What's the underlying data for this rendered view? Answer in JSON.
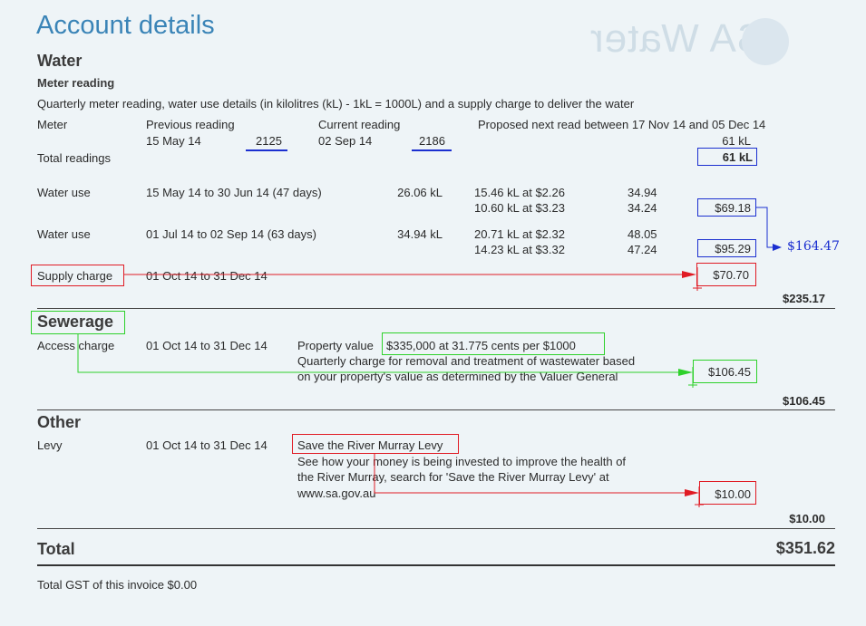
{
  "heading": "Account details",
  "water": {
    "title": "Water",
    "meter_reading_title": "Meter reading",
    "description": "Quarterly meter reading, water use details (in kilolitres (kL) - 1kL = 1000L) and a supply charge to deliver the water",
    "col_meter": "Meter",
    "col_previous": "Previous reading",
    "col_current": "Current reading",
    "col_proposed": "Proposed next read between 17 Nov 14 and 05 Dec 14",
    "previous_date": "15 May 14",
    "previous_value": "2125",
    "current_date": "02 Sep 14",
    "current_value": "2186",
    "meter_kl": "61 kL",
    "total_readings_label": "Total readings",
    "total_readings_value": "61 kL",
    "use1": {
      "label": "Water use",
      "period": "15 May 14 to 30 Jun 14 (47 days)",
      "kl": "26.06 kL",
      "tier1": "15.46 kL at $2.26",
      "tier1_amount": "34.94",
      "tier2": "10.60 kL at $3.23",
      "tier2_amount": "34.24",
      "subtotal": "$69.18"
    },
    "use2": {
      "label": "Water use",
      "period": "01 Jul 14 to 02 Sep 14 (63 days)",
      "kl": "34.94 kL",
      "tier1": "20.71 kL at $2.32",
      "tier1_amount": "48.05",
      "tier2": "14.23 kL at $3.32",
      "tier2_amount": "47.24",
      "subtotal": "$95.29"
    },
    "use_sum_annotation": "$164.47",
    "supply_label": "Supply charge",
    "supply_period": "01 Oct 14 to 31 Dec 14",
    "supply_amount": "$70.70",
    "section_total": "$235.17"
  },
  "sewerage": {
    "title": "Sewerage",
    "access_label": "Access charge",
    "period": "01 Oct 14 to 31 Dec 14",
    "property_value_label": "Property value",
    "property_value_detail": "$335,000 at 31.775 cents per $1000",
    "desc_line1": "Quarterly charge for removal and treatment of wastewater based",
    "desc_line2": "on your property's value as determined by the Valuer General",
    "amount": "$106.45",
    "section_total": "$106.45"
  },
  "other": {
    "title": "Other",
    "levy_label": "Levy",
    "period": "01 Oct 14 to 31 Dec 14",
    "levy_name": "Save the River Murray Levy",
    "desc_line1": "See how your money is being invested to improve the health of",
    "desc_line2": "the River Murray, search for 'Save the River Murray Levy' at",
    "desc_line3": "www.sa.gov.au",
    "amount": "$10.00",
    "section_total": "$10.00"
  },
  "total": {
    "label": "Total",
    "value": "$351.62",
    "gst": "Total GST of this invoice $0.00"
  },
  "logo_text": "SA Water",
  "colors": {
    "heading": "#3a84b7",
    "annotation_blue": "#1b2fd0",
    "annotation_red": "#e01b24",
    "annotation_green": "#2ed12b"
  }
}
